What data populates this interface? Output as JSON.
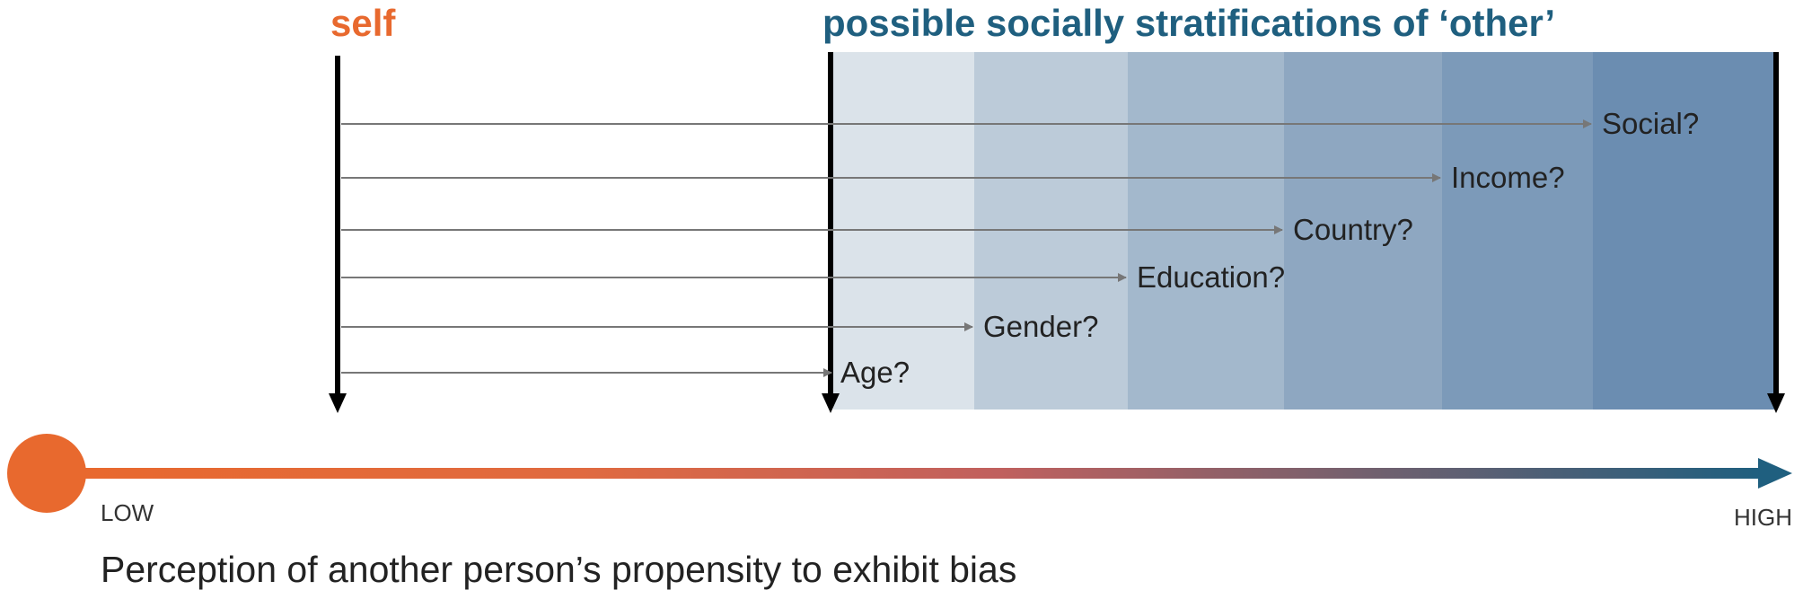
{
  "colors": {
    "self": "#e8692e",
    "other": "#1f5f7f",
    "band_shades": [
      "#dbe3ea",
      "#bccbd9",
      "#a3b8cc",
      "#8ea7c1",
      "#7c9ab9",
      "#6b8db1"
    ]
  },
  "labels": {
    "self_title": "self",
    "other_title": "possible socially stratifications of ‘other’",
    "axis_low": "LOW",
    "axis_high": "HIGH",
    "caption": "Perception of another person’s propensity to exhibit bias"
  },
  "categories": [
    {
      "label": "Age?",
      "level": 1
    },
    {
      "label": "Gender?",
      "level": 2
    },
    {
      "label": "Education?",
      "level": 3
    },
    {
      "label": "Country?",
      "level": 4
    },
    {
      "label": "Income?",
      "level": 5
    },
    {
      "label": "Social?",
      "level": 6
    }
  ]
}
